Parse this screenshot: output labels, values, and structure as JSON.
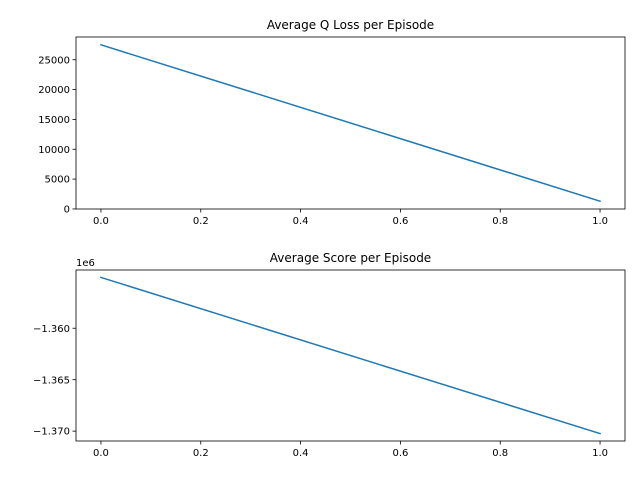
{
  "chart_data": [
    {
      "type": "line",
      "title": "Average Q Loss per Episode",
      "xlabel": "",
      "ylabel": "",
      "x": [
        0,
        1
      ],
      "series": [
        {
          "values": [
            27500,
            1300
          ],
          "color": "#1f77b4"
        }
      ],
      "xlim": [
        -0.05,
        1.05
      ],
      "ylim": [
        -10,
        28810
      ],
      "xticks": [
        0.0,
        0.2,
        0.4,
        0.6,
        0.8,
        1.0
      ],
      "xtick_labels": [
        "0.0",
        "0.2",
        "0.4",
        "0.6",
        "0.8",
        "1.0"
      ],
      "yticks": [
        0,
        5000,
        10000,
        15000,
        20000,
        25000
      ],
      "ytick_labels": [
        "0",
        "5000",
        "10000",
        "15000",
        "20000",
        "25000"
      ],
      "offset_text": "",
      "grid": false,
      "legend": "none"
    },
    {
      "type": "line",
      "title": "Average Score per Episode",
      "xlabel": "",
      "ylabel": "",
      "x": [
        0,
        1
      ],
      "series": [
        {
          "values": [
            -1355060,
            -1370240
          ],
          "color": "#1f77b4"
        }
      ],
      "xlim": [
        -0.05,
        1.05
      ],
      "ylim": [
        -1370960,
        -1354340
      ],
      "xticks": [
        0.0,
        0.2,
        0.4,
        0.6,
        0.8,
        1.0
      ],
      "xtick_labels": [
        "0.0",
        "0.2",
        "0.4",
        "0.6",
        "0.8",
        "1.0"
      ],
      "yticks": [
        -1360000,
        -1365000,
        -1370000
      ],
      "ytick_labels": [
        "−1.360",
        "−1.365",
        "−1.370"
      ],
      "offset_text": "1e6",
      "grid": false,
      "legend": "none"
    }
  ]
}
